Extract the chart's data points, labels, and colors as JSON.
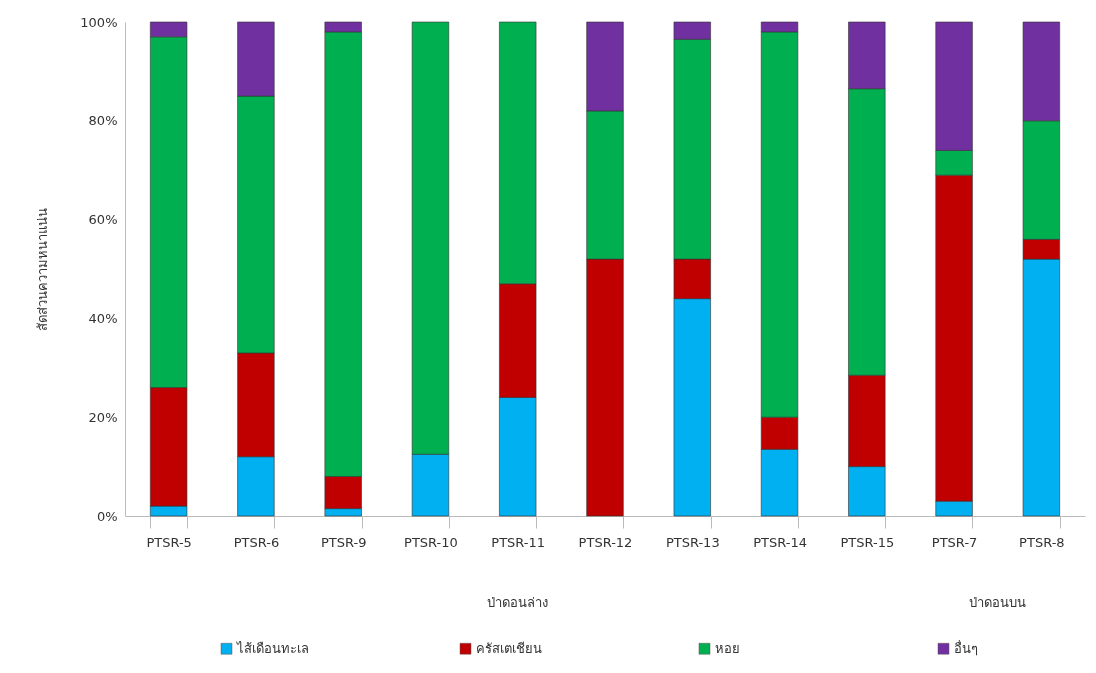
{
  "chart_data": {
    "type": "bar",
    "stacked": true,
    "ylabel": "สัดส่วนความหนาแน่น",
    "categories": [
      "PTSR-5",
      "PTSR-6",
      "PTSR-9",
      "PTSR-10",
      "PTSR-11",
      "PTSR-12",
      "PTSR-13",
      "PTSR-14",
      "PTSR-15",
      "PTSR-7",
      "PTSR-8"
    ],
    "series": [
      {
        "name": "ไส้เดือนทะเล",
        "color": "#00b0f0",
        "values": [
          2,
          12,
          1.5,
          12.5,
          24,
          null,
          44,
          13.5,
          10,
          3,
          52
        ]
      },
      {
        "name": "ครัสเตเชียน",
        "color": "#c00000",
        "values": [
          24,
          21,
          6.5,
          null,
          23,
          52,
          8,
          6.5,
          18.5,
          66,
          4
        ]
      },
      {
        "name": "หอย",
        "color": "#00b050",
        "values": [
          71,
          52,
          90,
          87.5,
          53,
          30,
          44.5,
          78,
          58,
          5,
          24
        ]
      },
      {
        "name": "อื่นๆ",
        "color": "#7030a0",
        "values": [
          3,
          15,
          2,
          null,
          null,
          18,
          3.5,
          2,
          13.5,
          26,
          20
        ]
      }
    ],
    "ylim": [
      0,
      100
    ],
    "yticks": [
      {
        "value": 0,
        "label": "0%"
      },
      {
        "value": 20,
        "label": "20%"
      },
      {
        "value": 40,
        "label": "40%"
      },
      {
        "value": 60,
        "label": "60%"
      },
      {
        "value": 80,
        "label": "80%"
      },
      {
        "value": 100,
        "label": "100%"
      }
    ],
    "grid": false,
    "legend": "bottom",
    "annotations": [
      "ป่าดอนล่าง",
      "ป่าดอนบน"
    ]
  }
}
